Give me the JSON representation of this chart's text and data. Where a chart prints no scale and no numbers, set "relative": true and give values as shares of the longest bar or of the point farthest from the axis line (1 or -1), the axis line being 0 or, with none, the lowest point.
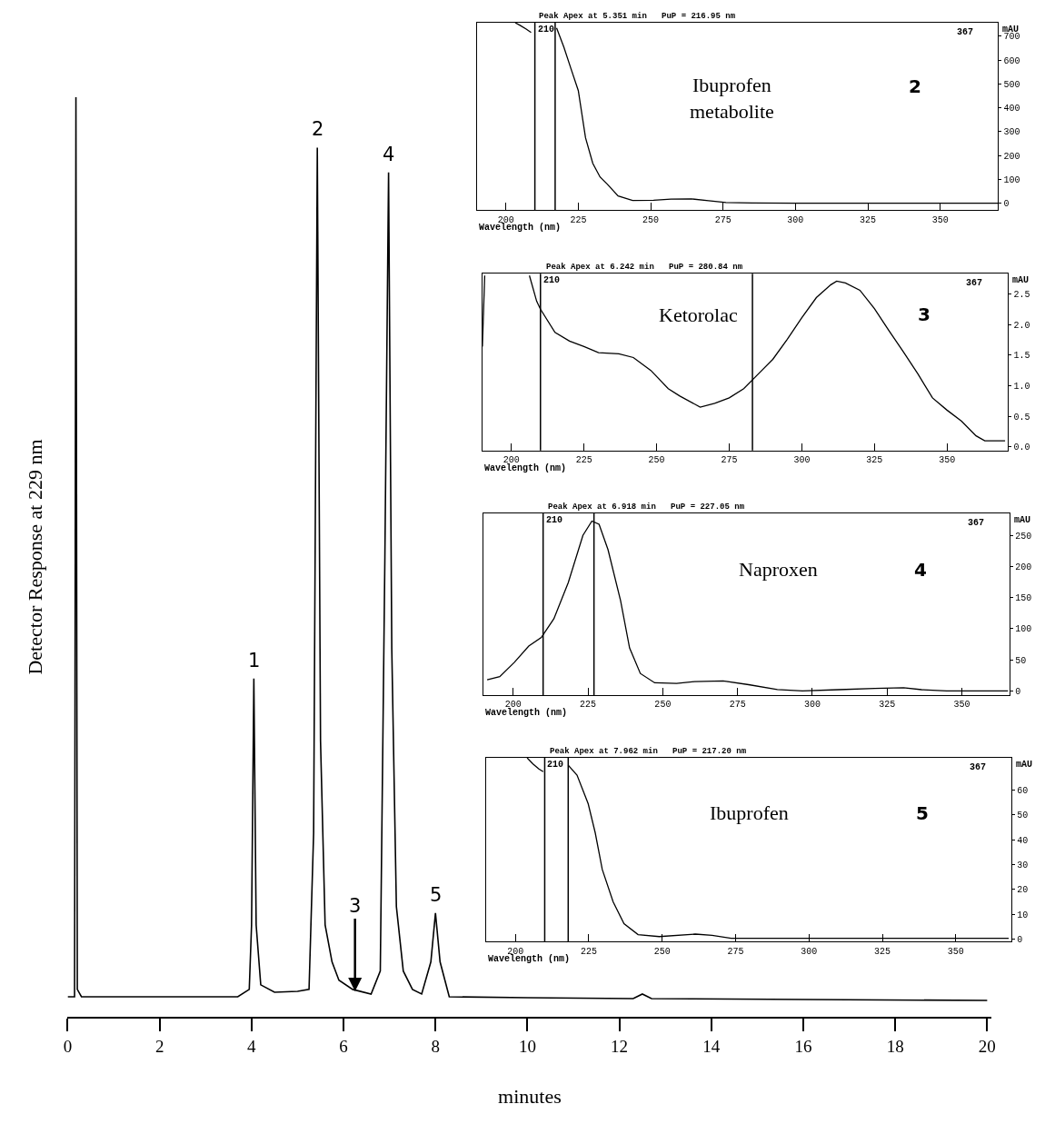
{
  "chart_data": [
    {
      "type": "line",
      "relative": true,
      "xlabel": "minutes",
      "ylabel": "Detector Response at 229 nm",
      "xlim": [
        0,
        20.1
      ],
      "xticks": [
        0,
        2,
        4,
        6,
        8,
        10,
        12,
        14,
        16,
        18,
        20
      ],
      "series": [
        {
          "color": "#000000",
          "x": [
            0,
            0.15,
            0.18,
            0.21,
            0.3,
            3.7,
            3.95,
            4.0,
            4.05,
            4.1,
            4.2,
            4.5,
            5.0,
            5.25,
            5.35,
            5.43,
            5.5,
            5.6,
            5.75,
            5.9,
            6.2,
            6.6,
            6.8,
            6.9,
            6.98,
            7.05,
            7.15,
            7.3,
            7.5,
            7.7,
            7.9,
            8.0,
            8.1,
            8.3,
            10,
            12.3,
            12.5,
            12.7,
            20
          ],
          "values": [
            0.022,
            0.022,
            1,
            0.03,
            0.022,
            0.022,
            0.03,
            0.1,
            0.368,
            0.1,
            0.035,
            0.027,
            0.028,
            0.03,
            0.2,
            0.945,
            0.3,
            0.1,
            0.06,
            0.04,
            0.03,
            0.025,
            0.05,
            0.5,
            0.918,
            0.4,
            0.12,
            0.05,
            0.03,
            0.025,
            0.06,
            0.113,
            0.06,
            0.022,
            0.021,
            0.02,
            0.025,
            0.02,
            0.018
          ]
        }
      ],
      "annotations": [
        {
          "text": "1",
          "x": 4.05,
          "y": 0.368
        },
        {
          "text": "2",
          "x": 5.43,
          "y": 0.945
        },
        {
          "text": "3",
          "x": 6.25,
          "y": 0.028
        },
        {
          "text": "4",
          "x": 6.98,
          "y": 0.918
        },
        {
          "text": "5",
          "x": 8.0,
          "y": 0.113
        }
      ]
    },
    {
      "type": "line",
      "title": "Peak Apex at 5.351 min   PuP = 216.95 nm",
      "xlabel": "Wavelength (nm)",
      "ylabel": "mAU",
      "xlim": [
        190,
        370
      ],
      "ylim": [
        -30,
        757
      ],
      "xticks": [
        200,
        225,
        250,
        275,
        300,
        325,
        350
      ],
      "yticks": [
        0,
        100,
        200,
        300,
        400,
        500,
        600,
        700
      ],
      "series": [
        {
          "color": "#000000",
          "x": [
            203.2,
            205,
            207,
            208.7,
            210,
            217.5,
            220,
            222.5,
            225,
            227.5,
            230,
            232.5,
            235,
            238.75,
            243.75,
            251,
            257,
            264,
            270,
            276,
            285,
            300,
            370
          ],
          "values": [
            757,
            745,
            730,
            716,
            null,
            735,
            655,
            563,
            472,
            274,
            167,
            110,
            80,
            30,
            11,
            12,
            17,
            18,
            10,
            3,
            1,
            0,
            0
          ]
        }
      ],
      "ref_lines": [
        {
          "axis": "x",
          "value": 210,
          "label": "210"
        },
        {
          "axis": "x",
          "value": 217
        }
      ],
      "annotations": [
        "Ibuprofen\nmetabolite",
        "2",
        "367"
      ]
    },
    {
      "type": "line",
      "title": "Peak Apex at 6.242 min   PuP = 280.84 nm",
      "xlabel": "Wavelength (nm)",
      "ylabel": "mAU",
      "xlim": [
        190,
        371
      ],
      "ylim": [
        -0.06,
        2.83
      ],
      "xticks": [
        200,
        225,
        250,
        275,
        300,
        325,
        350
      ],
      "yticks": [
        {
          "value": 0,
          "label": "0.0"
        },
        0.5,
        {
          "value": 1,
          "label": "1.0"
        },
        1.5,
        {
          "value": 2,
          "label": "2.0"
        },
        2.5
      ],
      "series": [
        {
          "color": "#000000",
          "x": [
            190,
            190.8,
            191,
            206.2,
            208.7,
            210,
            215,
            220,
            225,
            230,
            237,
            242,
            248,
            254,
            258,
            265,
            270,
            275,
            280,
            285,
            290,
            295,
            300,
            305,
            310,
            312,
            315,
            320,
            325,
            330,
            335,
            340,
            345,
            350,
            355,
            360,
            363,
            370
          ],
          "values": [
            1.64,
            2.8,
            null,
            2.8,
            2.38,
            2.25,
            1.87,
            1.73,
            1.64,
            1.54,
            1.52,
            1.46,
            1.25,
            0.95,
            0.83,
            0.65,
            0.71,
            0.8,
            0.95,
            1.19,
            1.43,
            1.76,
            2.11,
            2.44,
            2.65,
            2.71,
            2.68,
            2.56,
            2.26,
            1.9,
            1.55,
            1.19,
            0.8,
            0.6,
            0.42,
            0.18,
            0.1,
            0.1
          ]
        }
      ],
      "ref_lines": [
        {
          "axis": "x",
          "value": 210,
          "label": "210"
        },
        {
          "axis": "x",
          "value": 283
        }
      ],
      "annotations": [
        "Ketorolac",
        "3",
        "367"
      ]
    },
    {
      "type": "line",
      "title": "Peak Apex at 6.918 min   PuP = 227.05 nm",
      "xlabel": "Wavelength (nm)",
      "ylabel": "mAU",
      "xlim": [
        190,
        366
      ],
      "ylim": [
        -7,
        286
      ],
      "xticks": [
        200,
        225,
        250,
        275,
        300,
        325,
        350
      ],
      "yticks": [
        0,
        50,
        100,
        150,
        200,
        250
      ],
      "series": [
        {
          "color": "#000000",
          "x": [
            191.3,
            195.5,
            200.4,
            205.2,
            209.4,
            213.6,
            218.4,
            223.3,
            226.3,
            228.7,
            231.7,
            235.9,
            238.9,
            242.5,
            247.3,
            254.6,
            260.6,
            270.2,
            278.7,
            288.3,
            296.7,
            308.8,
            320.8,
            330.5,
            336.5,
            344.9,
            365.4
          ],
          "values": [
            18,
            23,
            46,
            72,
            86,
            116,
            174,
            250,
            273,
            268,
            227,
            145,
            69,
            28,
            13,
            12,
            15,
            16,
            10,
            2,
            0,
            2,
            4,
            5,
            2,
            0,
            0
          ]
        }
      ],
      "ref_lines": [
        {
          "axis": "x",
          "value": 210,
          "label": "210"
        },
        {
          "axis": "x",
          "value": 227
        }
      ],
      "annotations": [
        "Naproxen",
        "4",
        "367"
      ]
    },
    {
      "type": "line",
      "title": "Peak Apex at 7.962 min   PuP = 217.20 nm",
      "xlabel": "Wavelength (nm)",
      "ylabel": "mAU",
      "xlim": [
        190,
        369
      ],
      "ylim": [
        -1.1,
        73
      ],
      "xticks": [
        200,
        225,
        250,
        275,
        300,
        325,
        350
      ],
      "yticks": [
        0,
        10,
        20,
        30,
        40,
        50,
        60
      ],
      "series": [
        {
          "color": "#000000",
          "x": [
            204,
            206,
            208,
            209.5,
            212,
            218,
            221,
            224.8,
            227.2,
            229.6,
            233.3,
            237,
            241.8,
            249,
            261.3,
            267,
            273.5,
            368
          ],
          "values": [
            73,
            70.5,
            68.5,
            67.4,
            null,
            70,
            66,
            54.5,
            42.8,
            28,
            15,
            6.2,
            1.8,
            1,
            2,
            1.5,
            0.3,
            0.3
          ]
        }
      ],
      "ref_lines": [
        {
          "axis": "x",
          "value": 210,
          "label": "210"
        },
        {
          "axis": "x",
          "value": 218
        }
      ],
      "annotations": [
        "Ibuprofen",
        "5",
        "367"
      ]
    }
  ]
}
